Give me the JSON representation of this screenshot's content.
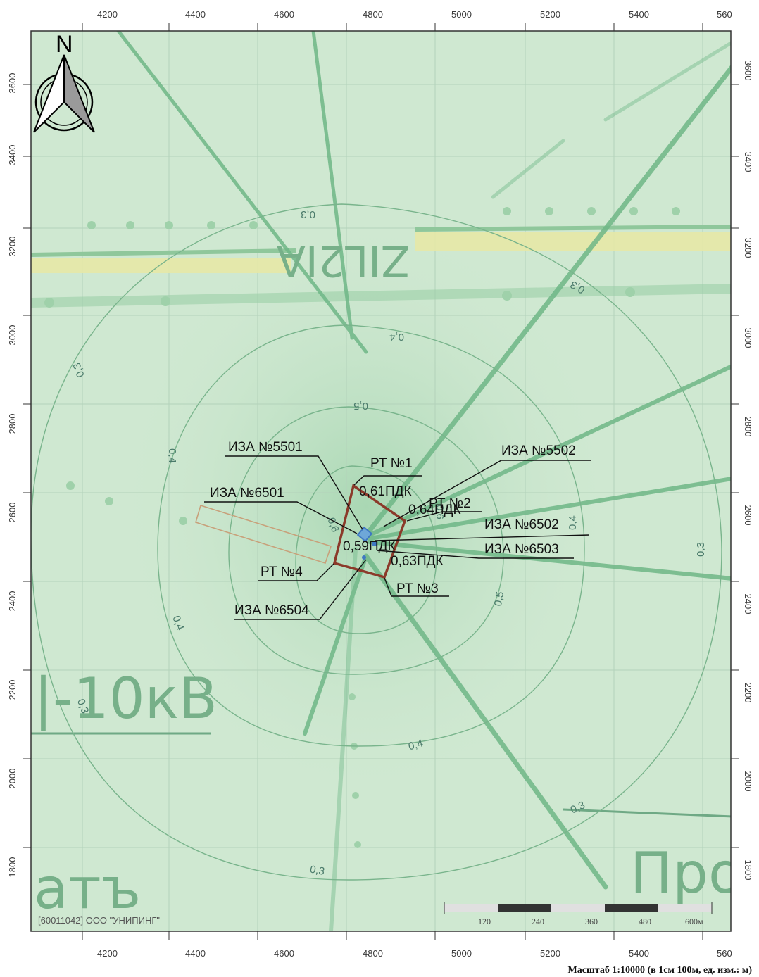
{
  "x_axis": {
    "ticks": [
      "4200",
      "4400",
      "4600",
      "4800",
      "5000",
      "5200",
      "5400",
      "560"
    ]
  },
  "y_axis": {
    "ticks": [
      "3600",
      "3400",
      "3200",
      "3000",
      "2800",
      "2600",
      "2400",
      "2200",
      "2000",
      "1800"
    ]
  },
  "north_label": "N",
  "background_text": {
    "road": "ZIL2IA",
    "power": "|-10кВ",
    "left": "атъ",
    "right": "Прое"
  },
  "isolines": {
    "p03": "0,3",
    "p04": "0,4",
    "p05": "0,5",
    "p06": "0,6"
  },
  "sources": {
    "iza5501": "ИЗА №5501",
    "iza5502": "ИЗА №5502",
    "iza6501": "ИЗА №6501",
    "iza6502": "ИЗА №6502",
    "iza6503": "ИЗА №6503",
    "iza6504": "ИЗА №6504"
  },
  "points": {
    "rt1": "РТ №1",
    "rt2": "РТ №2",
    "rt3": "РТ №3",
    "rt4": "РТ №4",
    "v1": "0,61ПДК",
    "v2": "0,64ПДК",
    "v3": "0,63ПДК",
    "v4": "0,59ПДК"
  },
  "organization": "[60011042] ООО \"УНИПИНГ\"",
  "scale_bar": {
    "labels": [
      "120",
      "240",
      "360",
      "480",
      "600м"
    ]
  },
  "scale_caption": "Масштаб 1:10000 (в 1см 100м, ед. изм.: м)",
  "colors": {
    "map_bg": "#cfe8d1",
    "road": "#e6e8a6",
    "contour": "#79b48c",
    "site": "#8b3a2a",
    "source": "#3f78c2"
  }
}
